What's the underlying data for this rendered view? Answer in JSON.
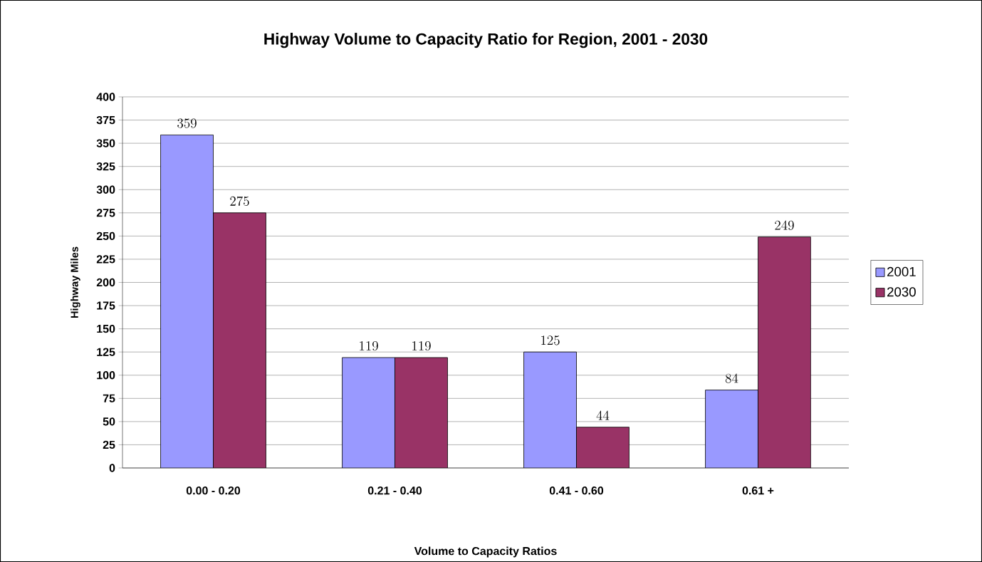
{
  "chart_data": {
    "type": "bar",
    "title": "Highway Volume to Capacity Ratio for Region, 2001 - 2030",
    "xlabel": "Volume to Capacity Ratios",
    "ylabel": "Highway Miles",
    "categories": [
      "0.00 - 0.20",
      "0.21 - 0.40",
      "0.41 - 0.60",
      "0.61 +"
    ],
    "series": [
      {
        "name": "2001",
        "color": "#9999ff",
        "values": [
          359,
          119,
          125,
          84
        ]
      },
      {
        "name": "2030",
        "color": "#993366",
        "values": [
          275,
          119,
          44,
          249
        ]
      }
    ],
    "ylim": [
      0,
      400
    ],
    "yticks": [
      0,
      25,
      50,
      75,
      100,
      125,
      150,
      175,
      200,
      225,
      250,
      275,
      300,
      325,
      350,
      375,
      400
    ],
    "grid": "y",
    "legend": "right",
    "data_labels": true
  }
}
